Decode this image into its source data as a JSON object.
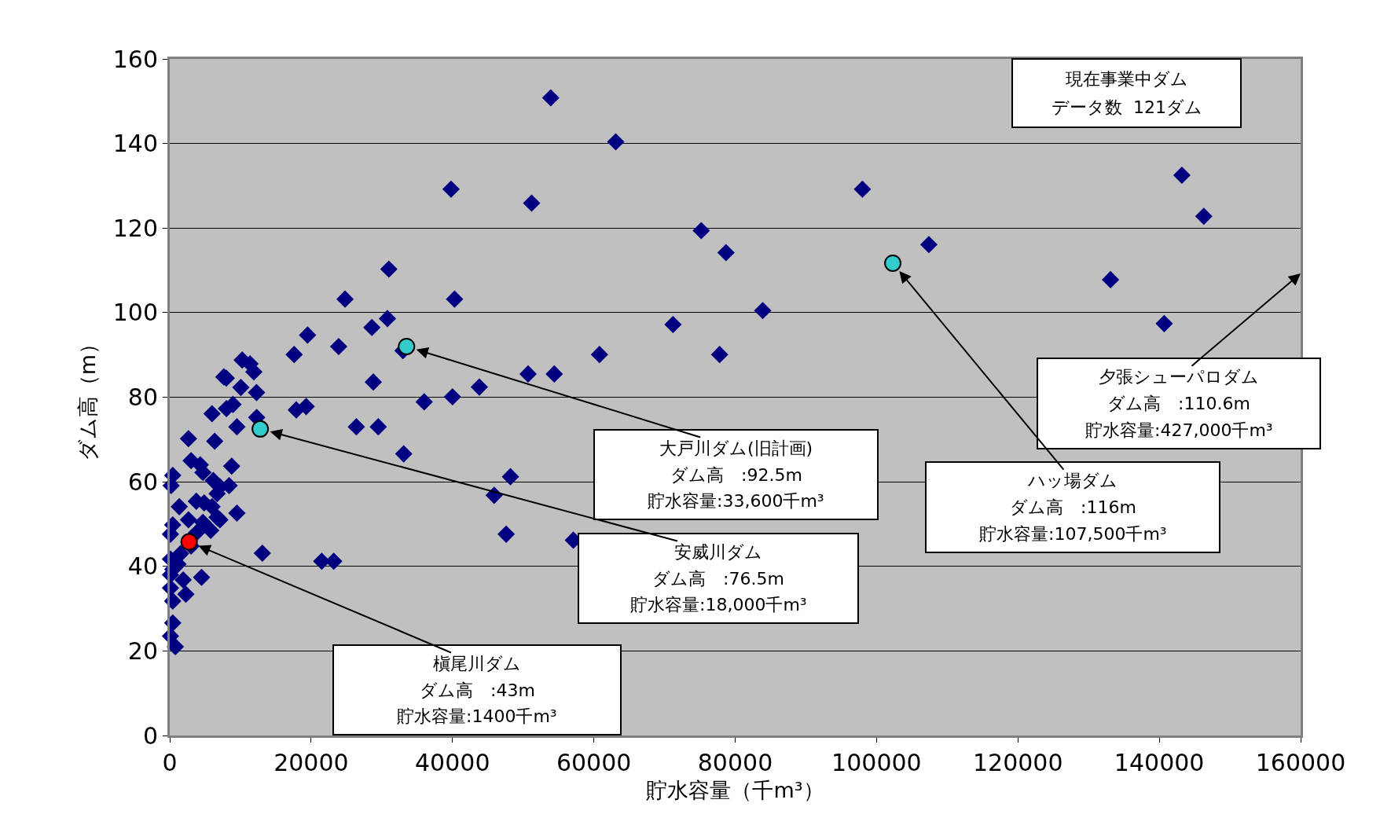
{
  "chart_data": {
    "type": "scatter",
    "xlabel": "貯水容量（千m³）",
    "ylabel": "ダム高（m）",
    "xlim": [
      0,
      160000
    ],
    "xticks": [
      0,
      20000,
      40000,
      60000,
      80000,
      100000,
      120000,
      140000,
      160000
    ],
    "ylim": [
      0,
      160
    ],
    "yticks": [
      0,
      20,
      40,
      60,
      80,
      100,
      120,
      140,
      160
    ],
    "grid": "y",
    "series": [
      {
        "color": "#000080",
        "marker": "diamond",
        "x": [
          53900,
          63100,
          39800,
          51200,
          98000,
          143200,
          146300,
          107400,
          75200,
          78700,
          83900,
          133100,
          140700,
          71200,
          77800,
          60800,
          50700,
          54400,
          43800,
          40000,
          36000,
          33100,
          48200,
          45900,
          47600,
          57100,
          24800,
          31000,
          40300,
          30800,
          28600,
          33000,
          19500,
          23900,
          17600,
          28800,
          17900,
          19300,
          26400,
          29500,
          21500,
          23200,
          13100,
          10250,
          11360,
          11900,
          7650,
          8000,
          10060,
          12280,
          8950,
          8020,
          5980,
          12300,
          9500,
          6360,
          2650,
          3020,
          4320,
          4690,
          8760,
          420,
          200,
          7100,
          8400,
          6700,
          3760,
          4870,
          5980,
          1350,
          9500,
          7100,
          4690,
          2650,
          5800,
          420,
          100,
          100,
          1160,
          420,
          4500,
          100,
          2280,
          420,
          420,
          100,
          790,
          1900,
          100,
          1530,
          3020,
          3760,
          6700,
          6160
        ],
        "values": [
          150.8,
          140.4,
          129.2,
          125.9,
          129.2,
          132.5,
          122.8,
          116.1,
          119.4,
          114.2,
          100.5,
          107.8,
          97.4,
          97.2,
          90.1,
          90.1,
          85.5,
          85.5,
          82.4,
          80.1,
          78.9,
          66.6,
          61.2,
          56.8,
          47.6,
          46.2,
          103.2,
          110.3,
          103.2,
          98.6,
          96.5,
          91,
          94.7,
          92,
          90.1,
          83.6,
          77,
          77.8,
          73,
          73,
          41.2,
          41.2,
          43.1,
          88.8,
          87.9,
          86,
          84.8,
          84.5,
          82.3,
          81.1,
          78.3,
          77.3,
          76.1,
          75.2,
          73,
          69.6,
          70.2,
          65,
          64,
          62.2,
          63.7,
          61.5,
          59.1,
          58.8,
          59.1,
          57.2,
          55.4,
          55,
          54.1,
          54.1,
          52.6,
          51,
          50.4,
          51,
          48.5,
          49.8,
          47.6,
          41.7,
          40.5,
          39.3,
          37.4,
          34.9,
          33.4,
          31.8,
          26.6,
          23.5,
          21,
          36.8,
          38,
          43,
          44.8,
          47.9,
          51.6,
          60.3
        ]
      },
      {
        "color": "#33cccc",
        "marker": "circle",
        "x": [
          33500,
          12800,
          102300
        ],
        "values": [
          92,
          72.5,
          111.7
        ]
      },
      {
        "color": "#ff0000",
        "marker": "circle",
        "x": [
          2740
        ],
        "values": [
          45.8
        ]
      }
    ],
    "annotations": [
      {
        "text": "大戸川ダム(旧計画)",
        "x": 33500,
        "y": 92
      },
      "ダム高　:92.5m",
      "貯水容量:33,600千m³",
      {
        "text": "安威川ダム",
        "x": 12800,
        "y": 72.5
      },
      "ダム高　:76.5m",
      "貯水容量:18,000千m³",
      {
        "text": "槇尾川ダム",
        "x": 2740,
        "y": 45.8
      },
      "ダム高　:43m",
      "貯水容量:1400千m³",
      {
        "text": "ハッ場ダム",
        "x": 102300,
        "y": 111.7
      },
      "ダム高　:116m",
      "貯水容量:107,500千m³",
      "夕張シューパロダム",
      "ダム高　:110.6m",
      "貯水容量:427,000千m³",
      "現在事業中ダム",
      "データ数  121ダム"
    ]
  }
}
